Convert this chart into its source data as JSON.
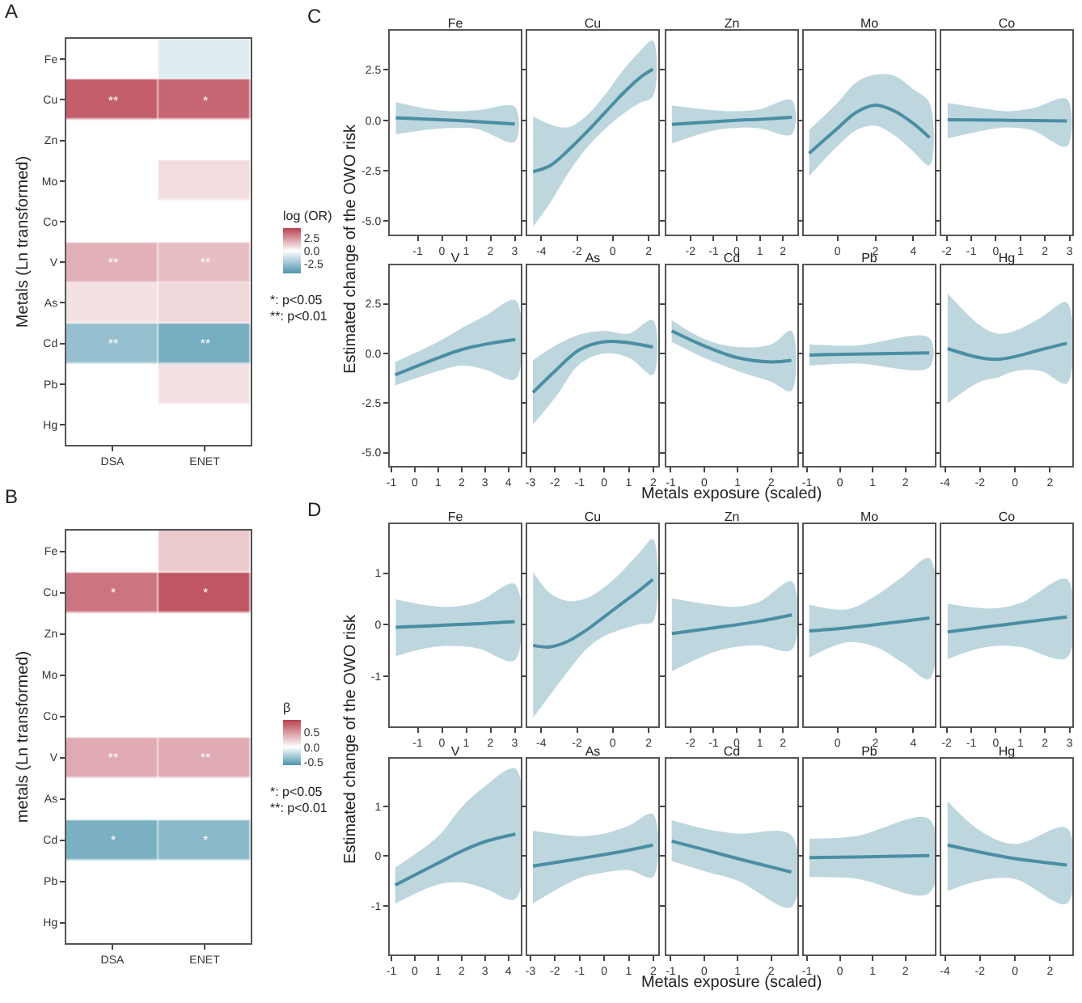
{
  "chart_data": [
    {
      "type": "heatmap",
      "categories": [
        "DSA",
        "ENET"
      ],
      "y_categories": [
        "Fe",
        "Cu",
        "Zn",
        "Mo",
        "Co",
        "V",
        "As",
        "Cd",
        "Pb",
        "Hg"
      ],
      "cells": [
        [
          null,
          -0.8
        ],
        [
          3.7,
          3.5
        ],
        [
          null,
          null
        ],
        [
          null,
          0.8
        ],
        [
          null,
          null
        ],
        [
          1.8,
          1.5
        ],
        [
          0.7,
          0.9
        ],
        [
          -2.6,
          -3.4
        ],
        [
          null,
          0.7
        ],
        [
          null,
          null
        ]
      ],
      "cell_labels": [
        [
          null,
          null
        ],
        [
          "**",
          "*"
        ],
        [
          null,
          null
        ],
        [
          null,
          null
        ],
        [
          null,
          null
        ],
        [
          "**",
          "**"
        ],
        [
          null,
          null
        ],
        [
          "**",
          "**"
        ],
        [
          null,
          null
        ],
        [
          null,
          null
        ]
      ],
      "clabel": "log (OR)",
      "clim": [
        -4.4,
        4.4
      ],
      "cticks": [
        2.5,
        {
          "value": 0,
          "label": "0.0"
        },
        -2.5
      ],
      "ylabel": "Metals (Ln transformed)",
      "annotations": [
        "A",
        "*: p<0.05",
        "**: p<0.01"
      ]
    },
    {
      "type": "line",
      "title": "Fe",
      "ylabel": "Estimated change of the OWO risk",
      "annotations": [
        "C"
      ],
      "x": [
        -1.9,
        -0.5,
        0.5,
        1.5,
        3.0
      ],
      "xlim": [
        -2.15,
        3.25
      ],
      "xticks": [
        -1,
        0,
        1,
        2,
        3
      ],
      "ylim": [
        -5.67,
        4.44
      ],
      "yticks": [
        {
          "value": -5,
          "label": "-5.0"
        },
        -2.5,
        {
          "value": 0,
          "label": "0.0"
        },
        2.5
      ],
      "series": [
        {
          "color": "#4a8ea3",
          "values": [
            0.12,
            0.05,
            0,
            -0.07,
            -0.18
          ],
          "lower": [
            -0.7,
            -0.45,
            -0.38,
            -0.45,
            -1.07
          ],
          "upper": [
            0.9,
            0.55,
            0.45,
            0.5,
            0.67
          ]
        }
      ]
    },
    {
      "type": "line",
      "title": "Cu",
      "tick_labels": "x",
      "x": [
        -4.45,
        -3.5,
        -2.5,
        -1.5,
        -0.5,
        0.5,
        1.5,
        2.24
      ],
      "xlim": [
        -4.78,
        2.54
      ],
      "xticks": [
        -4,
        -2,
        0,
        2
      ],
      "ylim": [
        -5.67,
        4.44
      ],
      "yticks": [
        {
          "value": -5,
          "label": null
        },
        {
          "value": -2.5,
          "label": null
        },
        {
          "value": 0,
          "label": null
        },
        {
          "value": 2.5,
          "label": null
        }
      ],
      "series": [
        {
          "color": "#4a8ea3",
          "values": [
            -2.55,
            -2.25,
            -1.5,
            -0.62,
            0.32,
            1.27,
            2.1,
            2.53
          ],
          "lower": [
            -5.27,
            -4.1,
            -2.63,
            -1.42,
            -0.48,
            0.27,
            0.86,
            1.18
          ],
          "upper": [
            0.2,
            -0.2,
            -0.35,
            0.2,
            1.2,
            2.4,
            3.4,
            3.95
          ]
        }
      ]
    },
    {
      "type": "line",
      "title": "Zn",
      "tick_labels": "x",
      "x": [
        -2.8,
        -1,
        0,
        1,
        2.38
      ],
      "xlim": [
        -3.04,
        2.62
      ],
      "xticks": [
        -2,
        -1,
        0,
        1,
        2
      ],
      "ylim": [
        -5.67,
        4.44
      ],
      "yticks": [
        {
          "value": -5,
          "label": null
        },
        {
          "value": -2.5,
          "label": null
        },
        {
          "value": 0,
          "label": null
        },
        {
          "value": 2.5,
          "label": null
        }
      ],
      "series": [
        {
          "color": "#4a8ea3",
          "values": [
            -0.2,
            -0.07,
            0,
            0.05,
            0.15
          ],
          "lower": [
            -1.15,
            -0.5,
            -0.38,
            -0.4,
            -0.7
          ],
          "upper": [
            0.73,
            0.5,
            0.45,
            0.55,
            1.0
          ]
        }
      ]
    },
    {
      "type": "line",
      "title": "Mo",
      "tick_labels": "x",
      "x": [
        -1.49,
        0,
        1,
        2,
        3,
        4,
        4.85
      ],
      "xlim": [
        -1.77,
        5.13
      ],
      "xticks": [
        0,
        2,
        4
      ],
      "ylim": [
        -5.67,
        4.44
      ],
      "yticks": [
        {
          "value": -5,
          "label": null
        },
        {
          "value": -2.5,
          "label": null
        },
        {
          "value": 0,
          "label": null
        },
        {
          "value": 2.5,
          "label": null
        }
      ],
      "series": [
        {
          "color": "#4a8ea3",
          "values": [
            -1.64,
            -0.4,
            0.4,
            0.75,
            0.46,
            -0.16,
            -0.86
          ],
          "lower": [
            -2.77,
            -1.29,
            -0.48,
            -0.27,
            -0.75,
            -1.56,
            -2.23
          ],
          "upper": [
            -0.48,
            0.86,
            1.88,
            2.26,
            2.2,
            1.53,
            0.86
          ]
        }
      ]
    },
    {
      "type": "line",
      "title": "Co",
      "tick_labels": "x",
      "x": [
        -1.96,
        0,
        0.5,
        1.5,
        2.89
      ],
      "xlim": [
        -2.22,
        3.11
      ],
      "xticks": [
        -2,
        -1,
        0,
        1,
        2,
        3
      ],
      "ylim": [
        -5.67,
        4.44
      ],
      "yticks": [
        {
          "value": -5,
          "label": null
        },
        {
          "value": -2.5,
          "label": null
        },
        {
          "value": 0,
          "label": null
        },
        {
          "value": 2.5,
          "label": null
        }
      ],
      "series": [
        {
          "color": "#4a8ea3",
          "values": [
            0.03,
            0.01,
            0,
            -0.01,
            -0.03
          ],
          "lower": [
            -0.89,
            -0.4,
            -0.35,
            -0.5,
            -1.29
          ],
          "upper": [
            0.86,
            0.5,
            0.45,
            0.6,
            1.05
          ]
        }
      ]
    },
    {
      "type": "line",
      "title": "V",
      "x": [
        -0.84,
        1,
        2,
        3,
        4.3
      ],
      "xlim": [
        -1.07,
        4.53
      ],
      "xticks": [
        -1,
        0,
        1,
        2,
        3,
        4
      ],
      "ylim": [
        -5.67,
        4.44
      ],
      "yticks": [
        {
          "value": -5,
          "label": "-5.0"
        },
        -2.5,
        {
          "value": 0,
          "label": "0.0"
        },
        2.5
      ],
      "series": [
        {
          "color": "#4a8ea3",
          "values": [
            -1.08,
            -0.22,
            0.19,
            0.46,
            0.7
          ],
          "lower": [
            -1.62,
            -0.89,
            -0.62,
            -0.81,
            -1.3
          ],
          "upper": [
            -0.43,
            0.59,
            1.27,
            1.89,
            2.68
          ]
        }
      ]
    },
    {
      "type": "line",
      "title": "As",
      "tick_labels": "x",
      "x": [
        -2.9,
        -2,
        -1,
        0,
        1,
        1.98
      ],
      "xlim": [
        -3.13,
        2.2
      ],
      "xticks": [
        -3,
        -2,
        -1,
        0,
        1,
        2
      ],
      "ylim": [
        -5.67,
        4.44
      ],
      "yticks": [
        {
          "value": -5,
          "label": null
        },
        {
          "value": -2.5,
          "label": null
        },
        {
          "value": 0,
          "label": null
        },
        {
          "value": 2.5,
          "label": null
        }
      ],
      "series": [
        {
          "color": "#4a8ea3",
          "values": [
            -1.97,
            -0.89,
            0.19,
            0.59,
            0.54,
            0.32
          ],
          "lower": [
            -3.59,
            -2.24,
            -0.54,
            0,
            -0.22,
            -1.08
          ],
          "upper": [
            -0.35,
            0.38,
            0.95,
            1.14,
            1.0,
            1.68
          ]
        }
      ]
    },
    {
      "type": "line",
      "title": "Cd",
      "tick_labels": "x",
      "xlabel": "Metals exposure (scaled)",
      "x": [
        -0.97,
        0,
        1,
        2,
        2.6
      ],
      "xlim": [
        -1.13,
        2.78
      ],
      "xticks": [
        -1,
        0,
        1,
        2
      ],
      "ylim": [
        -5.67,
        4.44
      ],
      "yticks": [
        {
          "value": -5,
          "label": null
        },
        {
          "value": -2.5,
          "label": null
        },
        {
          "value": 0,
          "label": null
        },
        {
          "value": 2.5,
          "label": null
        }
      ],
      "series": [
        {
          "color": "#4a8ea3",
          "values": [
            1.14,
            0.38,
            -0.22,
            -0.43,
            -0.35
          ],
          "lower": [
            0.59,
            -0.22,
            -0.89,
            -1.43,
            -1.89
          ],
          "upper": [
            1.68,
            0.73,
            0.32,
            0.46,
            1.14
          ]
        }
      ]
    },
    {
      "type": "line",
      "title": "Pb",
      "tick_labels": "x",
      "x": [
        -0.93,
        0.5,
        2.73
      ],
      "xlim": [
        -1.1,
        2.9
      ],
      "xticks": [
        -1,
        0,
        1,
        2
      ],
      "ylim": [
        -5.67,
        4.44
      ],
      "yticks": [
        {
          "value": -5,
          "label": null
        },
        {
          "value": -2.5,
          "label": null
        },
        {
          "value": 0,
          "label": null
        },
        {
          "value": 2.5,
          "label": null
        }
      ],
      "series": [
        {
          "color": "#4a8ea3",
          "values": [
            -0.08,
            -0.03,
            0.03
          ],
          "lower": [
            -0.62,
            -0.5,
            -0.7
          ],
          "upper": [
            0.46,
            0.4,
            0.78
          ]
        }
      ]
    },
    {
      "type": "line",
      "title": "Hg",
      "tick_labels": "x",
      "x": [
        -3.85,
        -2,
        -1,
        0,
        1.5,
        2.97
      ],
      "xlim": [
        -4.21,
        3.28
      ],
      "xticks": [
        -4,
        -2,
        0,
        2
      ],
      "ylim": [
        -5.67,
        4.44
      ],
      "yticks": [
        {
          "value": -5,
          "label": null
        },
        {
          "value": -2.5,
          "label": null
        },
        {
          "value": 0,
          "label": null
        },
        {
          "value": 2.5,
          "label": null
        }
      ],
      "series": [
        {
          "color": "#4a8ea3",
          "values": [
            0.24,
            -0.22,
            -0.3,
            -0.16,
            0.19,
            0.51
          ],
          "lower": [
            -2.51,
            -1.43,
            -1.22,
            -0.89,
            -0.89,
            -1.51
          ],
          "upper": [
            3.03,
            1.41,
            1.0,
            1.14,
            1.81,
            2.57
          ]
        }
      ]
    },
    {
      "type": "heatmap",
      "categories": [
        "DSA",
        "ENET"
      ],
      "y_categories": [
        "Fe",
        "Cu",
        "Zn",
        "Mo",
        "Co",
        "V",
        "As",
        "Cd",
        "Pb",
        "Hg"
      ],
      "cells": [
        [
          null,
          0.25
        ],
        [
          0.65,
          0.8
        ],
        [
          null,
          null
        ],
        [
          null,
          null
        ],
        [
          null,
          null
        ],
        [
          0.4,
          0.4
        ],
        [
          null,
          null
        ],
        [
          -0.45,
          -0.4
        ],
        [
          null,
          null
        ],
        [
          null,
          null
        ]
      ],
      "cell_labels": [
        [
          null,
          null
        ],
        [
          "*",
          "*"
        ],
        [
          null,
          null
        ],
        [
          null,
          null
        ],
        [
          null,
          null
        ],
        [
          "**",
          "**"
        ],
        [
          null,
          null
        ],
        [
          "*",
          "*"
        ],
        [
          null,
          null
        ],
        [
          null,
          null
        ]
      ],
      "clabel": "β",
      "clim": [
        -0.6,
        0.9
      ],
      "cticks": [
        0.5,
        {
          "value": 0,
          "label": "0.0"
        },
        -0.5
      ],
      "ylabel": "metals (Ln transformed)",
      "annotations": [
        "B",
        "*: p<0.05",
        "**: p<0.01"
      ]
    },
    {
      "type": "line",
      "title": "Fe",
      "ylabel": "Estimated change of the OWO risk",
      "annotations": [
        "D"
      ],
      "x": [
        -1.9,
        -0.5,
        0.5,
        1.5,
        3.0
      ],
      "xlim": [
        -2.15,
        3.25
      ],
      "xticks": [
        -1,
        0,
        1,
        2,
        3
      ],
      "ylim": [
        -1.97,
        1.95
      ],
      "yticks": [
        -1,
        0,
        1
      ],
      "series": [
        {
          "color": "#4a8ea3",
          "values": [
            -0.05,
            -0.02,
            0,
            0.02,
            0.06
          ],
          "lower": [
            -0.61,
            -0.44,
            -0.41,
            -0.46,
            -0.69
          ],
          "upper": [
            0.49,
            0.37,
            0.35,
            0.45,
            0.79
          ]
        }
      ]
    },
    {
      "type": "line",
      "title": "Cu",
      "tick_labels": "x",
      "x": [
        -4.45,
        -3.5,
        -2.5,
        -1.5,
        -0.5,
        0.5,
        1.5,
        2.24
      ],
      "xlim": [
        -4.78,
        2.54
      ],
      "xticks": [
        -4,
        -2,
        0,
        2
      ],
      "ylim": [
        -1.97,
        1.95
      ],
      "yticks": [
        {
          "value": -1,
          "label": null
        },
        {
          "value": 0,
          "label": null
        },
        {
          "value": 1,
          "label": null
        }
      ],
      "series": [
        {
          "color": "#4a8ea3",
          "values": [
            -0.4,
            -0.43,
            -0.32,
            -0.11,
            0.15,
            0.41,
            0.67,
            0.88
          ],
          "lower": [
            -1.8,
            -1.36,
            -0.9,
            -0.48,
            -0.22,
            -0.09,
            0.01,
            0.06
          ],
          "upper": [
            1.03,
            0.61,
            0.46,
            0.51,
            0.72,
            1.03,
            1.4,
            1.66
          ]
        }
      ]
    },
    {
      "type": "line",
      "title": "Zn",
      "tick_labels": "x",
      "x": [
        -2.8,
        -1,
        0,
        1,
        2.38
      ],
      "xlim": [
        -3.04,
        2.62
      ],
      "xticks": [
        -2,
        -1,
        0,
        1,
        2
      ],
      "ylim": [
        -1.97,
        1.95
      ],
      "yticks": [
        {
          "value": -1,
          "label": null
        },
        {
          "value": 0,
          "label": null
        },
        {
          "value": 1,
          "label": null
        }
      ],
      "series": [
        {
          "color": "#4a8ea3",
          "values": [
            -0.17,
            -0.06,
            0,
            0.07,
            0.19
          ],
          "lower": [
            -0.9,
            -0.53,
            -0.43,
            -0.4,
            -0.48
          ],
          "upper": [
            0.51,
            0.38,
            0.35,
            0.45,
            0.84
          ]
        }
      ]
    },
    {
      "type": "line",
      "title": "Mo",
      "tick_labels": "x",
      "x": [
        -1.49,
        0.5,
        2,
        3.5,
        4.85
      ],
      "xlim": [
        -1.77,
        5.13
      ],
      "xticks": [
        0,
        2,
        4
      ],
      "ylim": [
        -1.97,
        1.95
      ],
      "yticks": [
        {
          "value": -1,
          "label": null
        },
        {
          "value": 0,
          "label": null
        },
        {
          "value": 1,
          "label": null
        }
      ],
      "series": [
        {
          "color": "#4a8ea3",
          "values": [
            -0.12,
            -0.06,
            0,
            0.07,
            0.13
          ],
          "lower": [
            -0.64,
            -0.34,
            -0.43,
            -0.75,
            -1.05
          ],
          "upper": [
            0.39,
            0.3,
            0.56,
            0.95,
            1.29
          ]
        }
      ]
    },
    {
      "type": "line",
      "title": "Co",
      "tick_labels": "x",
      "x": [
        -1.96,
        -1,
        0,
        1,
        2.89
      ],
      "xlim": [
        -2.22,
        3.11
      ],
      "xticks": [
        -2,
        -1,
        0,
        1,
        2,
        3
      ],
      "ylim": [
        -1.97,
        1.95
      ],
      "yticks": [
        {
          "value": -1,
          "label": null
        },
        {
          "value": 0,
          "label": null
        },
        {
          "value": 1,
          "label": null
        }
      ],
      "series": [
        {
          "color": "#4a8ea3",
          "values": [
            -0.14,
            -0.08,
            -0.02,
            0.04,
            0.15
          ],
          "lower": [
            -0.67,
            -0.5,
            -0.41,
            -0.43,
            -0.64
          ],
          "upper": [
            0.41,
            0.34,
            0.32,
            0.42,
            0.88
          ]
        }
      ]
    },
    {
      "type": "line",
      "title": "V",
      "x": [
        -0.84,
        1,
        2,
        3,
        4.3
      ],
      "xlim": [
        -1.07,
        4.53
      ],
      "xticks": [
        -1,
        0,
        1,
        2,
        3,
        4
      ],
      "ylim": [
        -1.97,
        1.95
      ],
      "yticks": [
        -1,
        0,
        1
      ],
      "series": [
        {
          "color": "#4a8ea3",
          "values": [
            -0.58,
            -0.14,
            0.1,
            0.29,
            0.44
          ],
          "lower": [
            -0.95,
            -0.57,
            -0.53,
            -0.65,
            -0.86
          ],
          "upper": [
            -0.23,
            0.4,
            0.98,
            1.4,
            1.75
          ]
        }
      ]
    },
    {
      "type": "line",
      "title": "As",
      "tick_labels": "x",
      "x": [
        -2.9,
        -1,
        0,
        1,
        1.98
      ],
      "xlim": [
        -3.13,
        2.2
      ],
      "xticks": [
        -3,
        -2,
        -1,
        0,
        1,
        2
      ],
      "ylim": [
        -1.97,
        1.95
      ],
      "yticks": [
        {
          "value": -1,
          "label": null
        },
        {
          "value": 0,
          "label": null
        },
        {
          "value": 1,
          "label": null
        }
      ],
      "series": [
        {
          "color": "#4a8ea3",
          "values": [
            -0.2,
            -0.05,
            0.03,
            0.12,
            0.22
          ],
          "lower": [
            -0.95,
            -0.44,
            -0.33,
            -0.28,
            -0.42
          ],
          "upper": [
            0.51,
            0.4,
            0.45,
            0.61,
            0.84
          ]
        }
      ]
    },
    {
      "type": "line",
      "title": "Cd",
      "tick_labels": "x",
      "xlabel": "Metals exposure (scaled)",
      "x": [
        -0.97,
        0,
        1,
        2.6
      ],
      "xlim": [
        -1.13,
        2.78
      ],
      "xticks": [
        -1,
        0,
        1,
        2
      ],
      "ylim": [
        -1.97,
        1.95
      ],
      "yticks": [
        {
          "value": -1,
          "label": null
        },
        {
          "value": 0,
          "label": null
        },
        {
          "value": 1,
          "label": null
        }
      ],
      "series": [
        {
          "color": "#4a8ea3",
          "values": [
            0.3,
            0.13,
            -0.05,
            -0.32
          ],
          "lower": [
            -0.1,
            -0.3,
            -0.49,
            -1.02
          ],
          "upper": [
            0.72,
            0.55,
            0.45,
            0.42
          ]
        }
      ]
    },
    {
      "type": "line",
      "title": "Pb",
      "tick_labels": "x",
      "x": [
        -0.93,
        0.5,
        2.73
      ],
      "xlim": [
        -1.1,
        2.9
      ],
      "xticks": [
        -1,
        0,
        1,
        2
      ],
      "ylim": [
        -1.97,
        1.95
      ],
      "yticks": [
        {
          "value": -1,
          "label": null
        },
        {
          "value": 0,
          "label": null
        },
        {
          "value": 1,
          "label": null
        }
      ],
      "series": [
        {
          "color": "#4a8ea3",
          "values": [
            -0.03,
            -0.02,
            0.01
          ],
          "lower": [
            -0.42,
            -0.45,
            -0.74
          ],
          "upper": [
            0.35,
            0.4,
            0.74
          ]
        }
      ]
    },
    {
      "type": "line",
      "title": "Hg",
      "tick_labels": "x",
      "x": [
        -3.85,
        -2,
        0,
        2.97
      ],
      "xlim": [
        -4.21,
        3.28
      ],
      "xticks": [
        -4,
        -2,
        0,
        2
      ],
      "ylim": [
        -1.97,
        1.95
      ],
      "yticks": [
        {
          "value": -1,
          "label": null
        },
        {
          "value": 0,
          "label": null
        },
        {
          "value": 1,
          "label": null
        }
      ],
      "series": [
        {
          "color": "#4a8ea3",
          "values": [
            0.22,
            0.08,
            -0.05,
            -0.18
          ],
          "lower": [
            -0.7,
            -0.49,
            -0.46,
            -0.95
          ],
          "upper": [
            1.1,
            0.51,
            0.24,
            0.56
          ]
        }
      ]
    }
  ]
}
